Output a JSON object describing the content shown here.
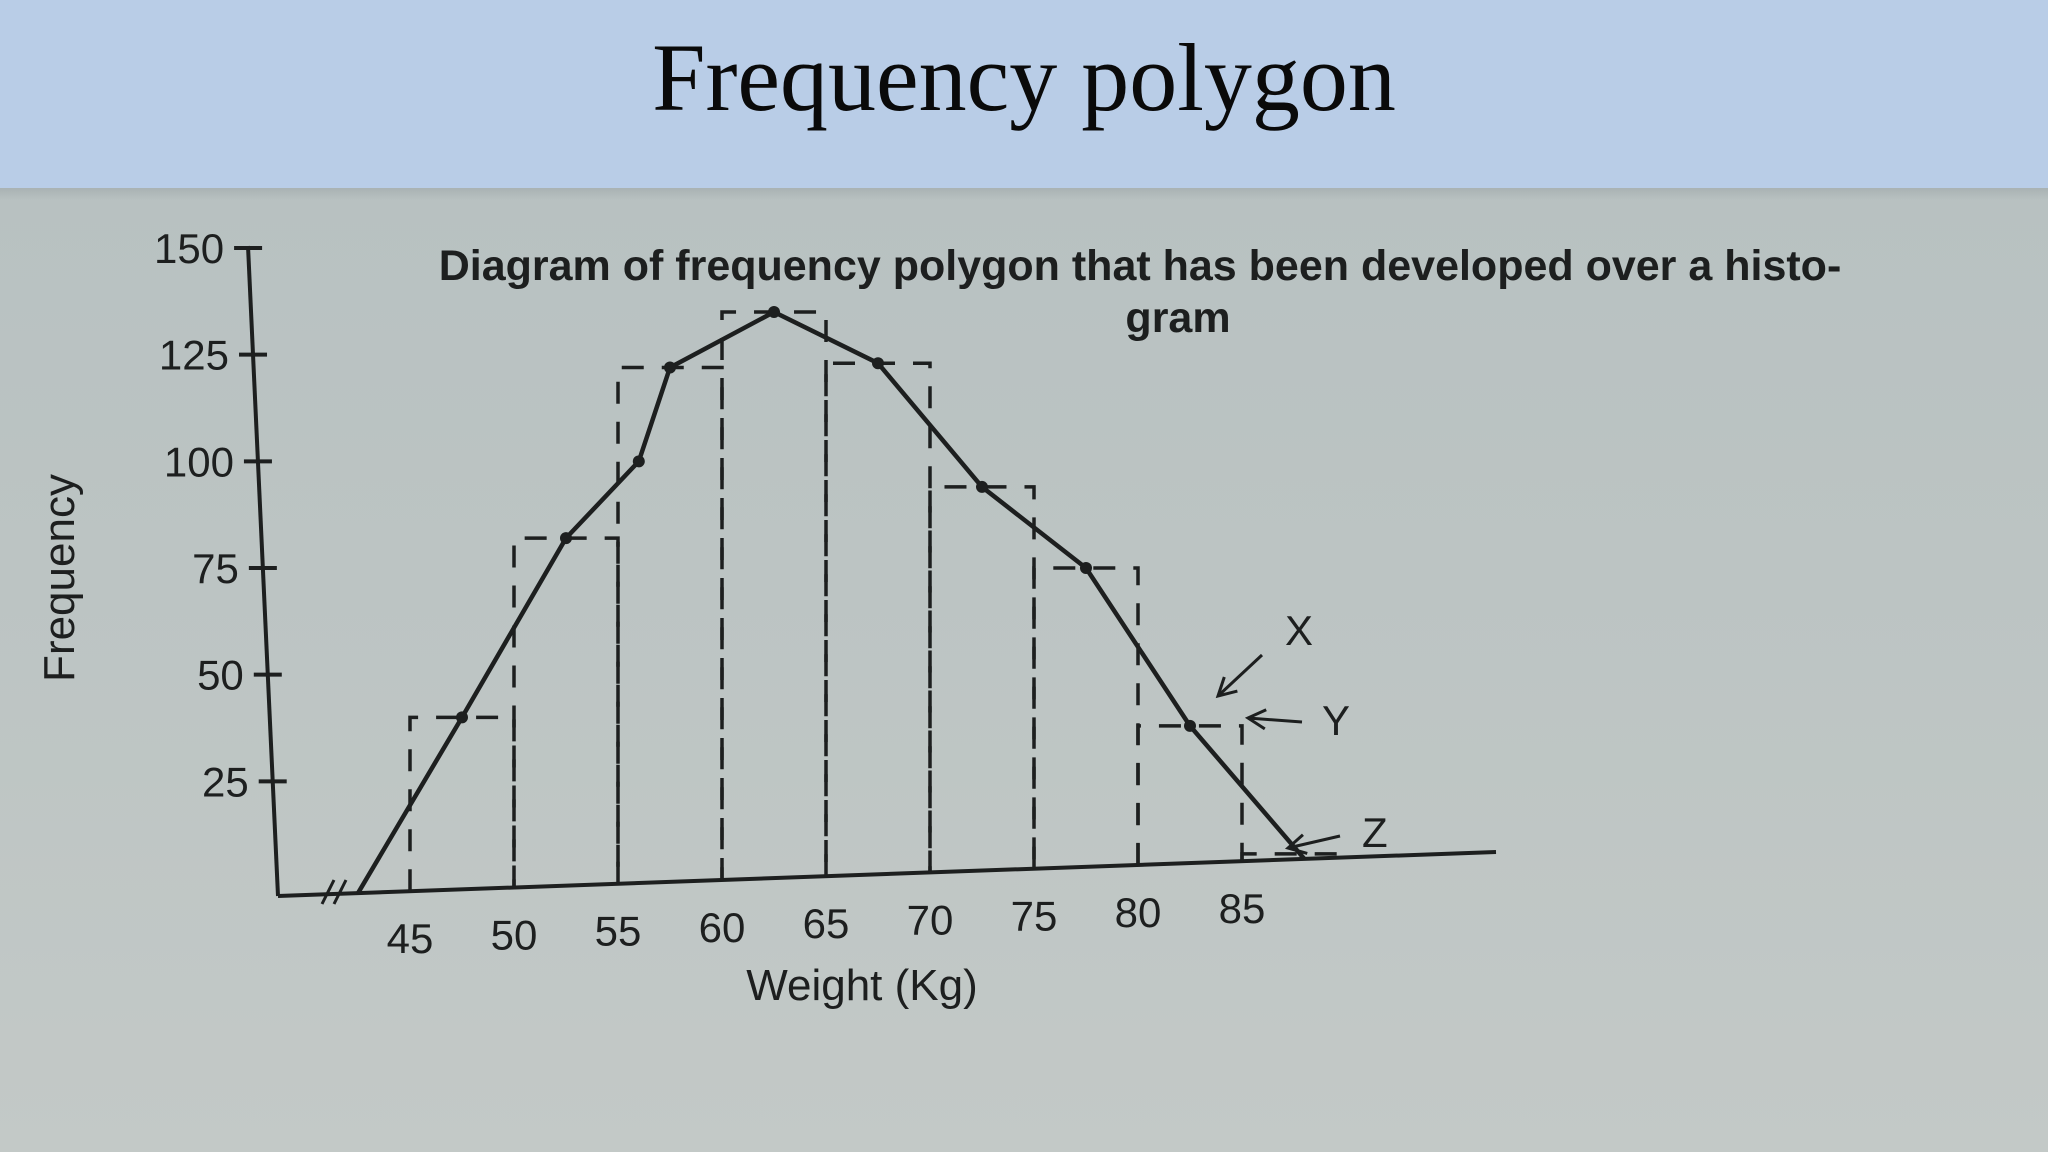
{
  "slide": {
    "title": "Frequency polygon"
  },
  "chart_data": {
    "type": "line",
    "title_line1": "Diagram of frequency polygon that has been developed over a histo-",
    "title_line2": "gram",
    "xlabel": "Weight (Kg)",
    "ylabel": "Frequency",
    "x_ticks": [
      "45",
      "50",
      "55",
      "60",
      "65",
      "70",
      "75",
      "80",
      "85"
    ],
    "y_ticks": [
      "150",
      "125",
      "100",
      "75",
      "50",
      "25"
    ],
    "ylim": [
      0,
      150
    ],
    "grid": false,
    "histogram_bars": [
      {
        "from": 45,
        "to": 50,
        "height": 40
      },
      {
        "from": 50,
        "to": 55,
        "height": 82
      },
      {
        "from": 55,
        "to": 60,
        "height": 122
      },
      {
        "from": 60,
        "to": 65,
        "height": 135
      },
      {
        "from": 65,
        "to": 70,
        "height": 123
      },
      {
        "from": 70,
        "to": 75,
        "height": 94
      },
      {
        "from": 75,
        "to": 80,
        "height": 75
      },
      {
        "from": 80,
        "to": 85,
        "height": 38
      },
      {
        "from": 85,
        "to": 90,
        "height": 8
      }
    ],
    "polygon_points": [
      {
        "x": 42.5,
        "y": 0
      },
      {
        "x": 47.5,
        "y": 40
      },
      {
        "x": 52.5,
        "y": 82
      },
      {
        "x": 56,
        "y": 100
      },
      {
        "x": 57.5,
        "y": 122
      },
      {
        "x": 62.5,
        "y": 135
      },
      {
        "x": 67.5,
        "y": 123
      },
      {
        "x": 72.5,
        "y": 94
      },
      {
        "x": 77.5,
        "y": 75
      },
      {
        "x": 82.5,
        "y": 38
      },
      {
        "x": 88,
        "y": 0
      }
    ],
    "annotations": [
      "X",
      "Y",
      "Z"
    ]
  }
}
